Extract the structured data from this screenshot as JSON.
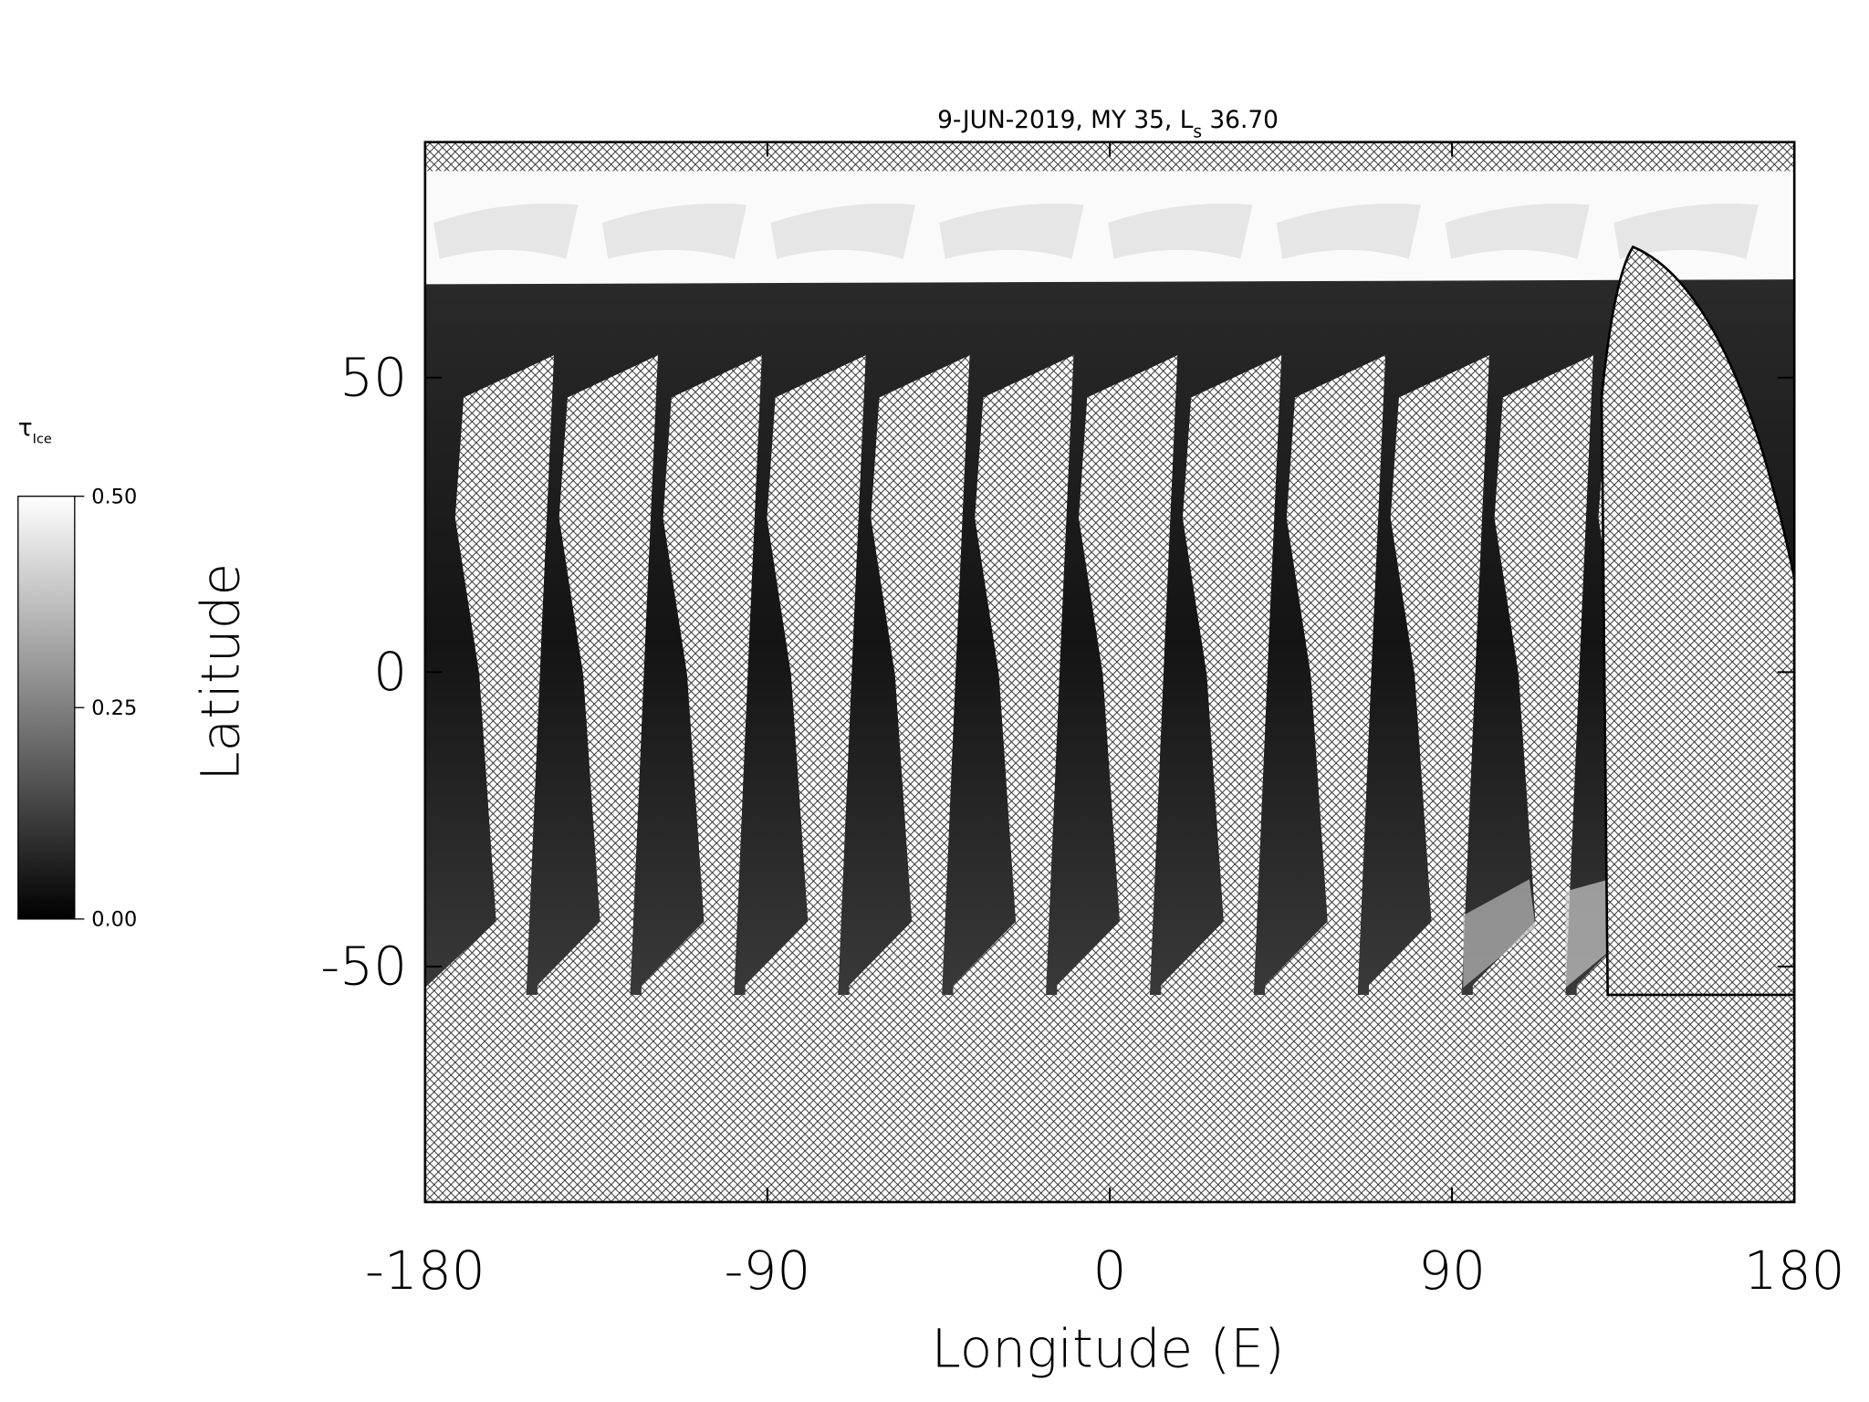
{
  "chart_data": {
    "type": "map",
    "title": {
      "text": "9-JUN-2019, MY 35,  L",
      "subscript": "s",
      "suffix": " 36.70"
    },
    "x_label": "Longitude (E)",
    "y_label": "Latitude",
    "xlim": [
      -180,
      180
    ],
    "ylim": [
      -90,
      90
    ],
    "xticks": [
      -180,
      -90,
      0,
      90,
      180
    ],
    "yticks": [
      -50,
      0,
      50
    ],
    "colorbar": {
      "label": "τ",
      "label_subscript": "Ice",
      "lim": [
        0,
        0.5
      ],
      "colors": [
        "#000000",
        "#ffffff"
      ],
      "ticks": [
        {
          "value": 0,
          "label": "0.00"
        },
        {
          "value": 0.25,
          "label": "0.25"
        },
        {
          "value": 0.5,
          "label": "0.50"
        }
      ]
    }
  }
}
